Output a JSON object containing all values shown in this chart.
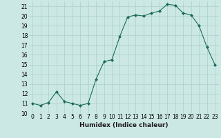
{
  "x": [
    0,
    1,
    2,
    3,
    4,
    5,
    6,
    7,
    8,
    9,
    10,
    11,
    12,
    13,
    14,
    15,
    16,
    17,
    18,
    19,
    20,
    21,
    22,
    23
  ],
  "y": [
    11.0,
    10.8,
    11.1,
    12.2,
    11.2,
    11.0,
    10.8,
    11.0,
    13.5,
    15.3,
    15.5,
    17.9,
    19.9,
    20.1,
    20.0,
    20.3,
    20.5,
    21.2,
    21.1,
    20.3,
    20.1,
    19.0,
    16.8,
    15.0
  ],
  "line_color": "#1a6b5a",
  "marker": "D",
  "marker_size": 2.0,
  "bg_color": "#cce8e4",
  "grid_color": "#aacfcb",
  "xlabel": "Humidex (Indice chaleur)",
  "ylim": [
    10,
    21.5
  ],
  "xlim": [
    -0.5,
    23.5
  ],
  "yticks": [
    10,
    11,
    12,
    13,
    14,
    15,
    16,
    17,
    18,
    19,
    20,
    21
  ],
  "xticks": [
    0,
    1,
    2,
    3,
    4,
    5,
    6,
    7,
    8,
    9,
    10,
    11,
    12,
    13,
    14,
    15,
    16,
    17,
    18,
    19,
    20,
    21,
    22,
    23
  ],
  "xtick_labels": [
    "0",
    "1",
    "2",
    "3",
    "4",
    "5",
    "6",
    "7",
    "8",
    "9",
    "10",
    "11",
    "12",
    "13",
    "14",
    "15",
    "16",
    "17",
    "18",
    "19",
    "20",
    "21",
    "22",
    "23"
  ],
  "label_fontsize": 6.5,
  "tick_fontsize": 5.5
}
